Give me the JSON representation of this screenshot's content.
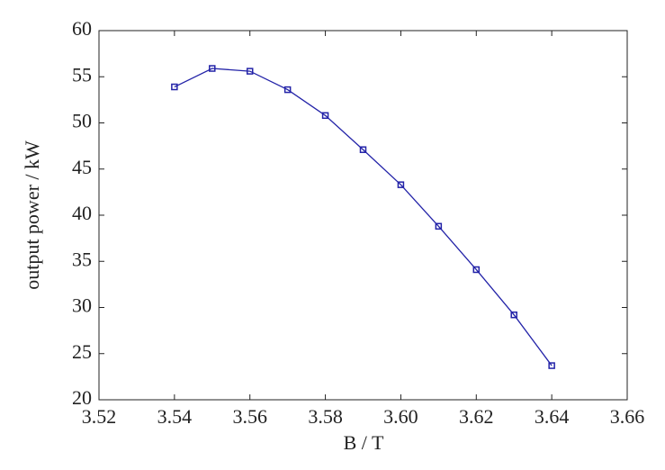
{
  "chart_data": {
    "type": "line",
    "xlabel": "B / T",
    "ylabel": "output power / kW",
    "x": [
      3.54,
      3.55,
      3.56,
      3.57,
      3.58,
      3.59,
      3.6,
      3.61,
      3.62,
      3.63,
      3.64
    ],
    "series": [
      {
        "color": "#2323a8",
        "values": [
          53.9,
          55.9,
          55.6,
          53.6,
          50.8,
          47.1,
          43.3,
          38.8,
          34.1,
          29.2,
          23.7
        ]
      }
    ],
    "xlim": [
      3.52,
      3.66
    ],
    "xticks": [
      3.52,
      3.54,
      3.56,
      3.58,
      {
        "value": 3.6,
        "label": "3.60"
      },
      3.62,
      3.64,
      3.66
    ],
    "ylim": [
      20,
      60
    ],
    "yticks": [
      20,
      25,
      30,
      35,
      40,
      45,
      50,
      55,
      60
    ],
    "grid": false
  }
}
